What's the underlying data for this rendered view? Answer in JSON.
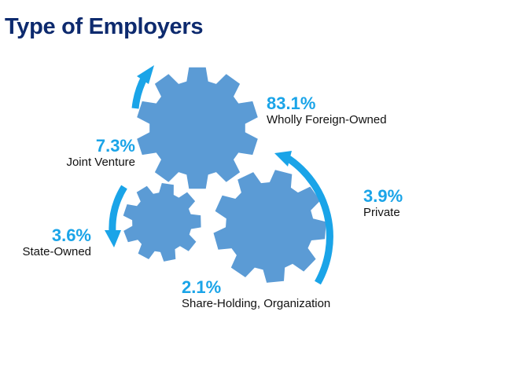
{
  "title": "Type of Employers",
  "accent_color": "#1aa4e8",
  "gear_color": "#5b9bd5",
  "segments": [
    {
      "percent": "83.1%",
      "label": "Wholly Foreign-Owned",
      "value": 83.1
    },
    {
      "percent": "7.3%",
      "label": "Joint Venture",
      "value": 7.3
    },
    {
      "percent": "3.9%",
      "label": "Private",
      "value": 3.9
    },
    {
      "percent": "3.6%",
      "label": "State-Owned",
      "value": 3.6
    },
    {
      "percent": "2.1%",
      "label": "Share-Holding, Organization",
      "value": 2.1
    }
  ]
}
